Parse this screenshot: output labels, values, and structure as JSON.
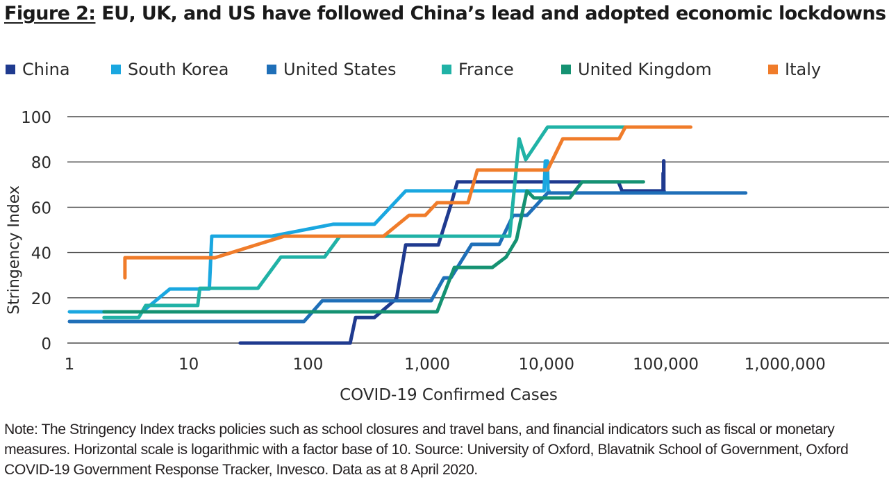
{
  "title": {
    "figure_label": "Figure 2:",
    "text": "EU, UK, and US have followed China’s lead and adopted economic lockdowns"
  },
  "note": "Note: The Stringency Index tracks policies such as school closures and travel bans, and financial indicators such as fiscal or monetary measures. Horizontal scale is logarithmic with a factor base of 10. Source: University of Oxford, Blavatnik School of Government, Oxford COVID-19 Government Response Tracker, Invesco. Data as at 8 April 2020.",
  "chart_data": {
    "type": "line",
    "title": "EU, UK, and US have followed China’s lead and adopted economic lockdowns",
    "xlabel": "COVID-19 Confirmed Cases",
    "ylabel": "Stringency Index",
    "xscale": "log",
    "xlim": [
      1,
      1000000
    ],
    "ylim": [
      0,
      100
    ],
    "x_ticks": [
      1,
      10,
      100,
      1000,
      10000,
      100000,
      1000000
    ],
    "x_tick_labels": [
      "1",
      "10",
      "100",
      "1,000",
      "10,000",
      "100,000",
      "1,000,000"
    ],
    "y_ticks": [
      0,
      20,
      40,
      60,
      80,
      100
    ],
    "y_tick_labels": [
      "0",
      "20",
      "40",
      "60",
      "80",
      "100"
    ],
    "grid": "horizontal",
    "legend_position": "top",
    "series": [
      {
        "name": "China",
        "color": "#1f3a8f",
        "points": [
          [
            27,
            0
          ],
          [
            226,
            0
          ],
          [
            251,
            11.3
          ],
          [
            361,
            11.3
          ],
          [
            553,
            19.6
          ],
          [
            660,
            43.3
          ],
          [
            1240,
            43.3
          ],
          [
            1580,
            61
          ],
          [
            1790,
            71.2
          ],
          [
            40100,
            71.2
          ],
          [
            43000,
            67.2
          ],
          [
            95000,
            67.2
          ],
          [
            95000,
            75
          ],
          [
            96000,
            75
          ],
          [
            96000,
            80.5
          ],
          [
            96500,
            80.5
          ],
          [
            96500,
            67.2
          ],
          [
            97000,
            67.2
          ]
        ]
      },
      {
        "name": "South Korea",
        "color": "#1aa7e0",
        "points": [
          [
            1,
            13.8
          ],
          [
            4.07,
            13.8
          ],
          [
            6.96,
            23.9
          ],
          [
            14.9,
            23.9
          ],
          [
            15.6,
            47.2
          ],
          [
            49.8,
            47.2
          ],
          [
            162,
            52.5
          ],
          [
            361,
            52.5
          ],
          [
            660,
            67.2
          ],
          [
            9560,
            67.2
          ],
          [
            9780,
            80.4
          ],
          [
            10200,
            80.4
          ],
          [
            10300,
            67.2
          ],
          [
            10500,
            67.2
          ]
        ]
      },
      {
        "name": "United States",
        "color": "#1f6fb8",
        "points": [
          [
            1,
            9.5
          ],
          [
            92.5,
            9.5
          ],
          [
            132,
            18.7
          ],
          [
            1080,
            18.7
          ],
          [
            1380,
            28.8
          ],
          [
            1580,
            28.8
          ],
          [
            2360,
            43.6
          ],
          [
            4020,
            43.6
          ],
          [
            5250,
            56.4
          ],
          [
            6860,
            56.4
          ],
          [
            10220,
            66.3
          ],
          [
            469000,
            66.3
          ]
        ]
      },
      {
        "name": "France",
        "color": "#20b2a6",
        "points": [
          [
            1.95,
            11.3
          ],
          [
            3.81,
            11.3
          ],
          [
            4.36,
            16.6
          ],
          [
            11.9,
            16.6
          ],
          [
            12.4,
            24.2
          ],
          [
            38.1,
            24.2
          ],
          [
            59.3,
            38
          ],
          [
            138,
            38
          ],
          [
            185,
            47.2
          ],
          [
            4910,
            47.2
          ],
          [
            5900,
            90.2
          ],
          [
            6700,
            81
          ],
          [
            10220,
            95.4
          ],
          [
            47800,
            95.4
          ]
        ]
      },
      {
        "name": "United Kingdom",
        "color": "#159272",
        "points": [
          [
            1.95,
            13.8
          ],
          [
            1210,
            13.8
          ],
          [
            1690,
            33.4
          ],
          [
            3520,
            33.4
          ],
          [
            4590,
            38
          ],
          [
            5610,
            45.7
          ],
          [
            6860,
            67.2
          ],
          [
            7840,
            64.1
          ],
          [
            15700,
            64.1
          ],
          [
            19900,
            71.2
          ],
          [
            65000,
            71.2
          ]
        ]
      },
      {
        "name": "Italy",
        "color": "#f07c2a",
        "points": [
          [
            2.92,
            28.8
          ],
          [
            2.92,
            37.7
          ],
          [
            16.6,
            37.7
          ],
          [
            63.2,
            47.2
          ],
          [
            431,
            47.2
          ],
          [
            705,
            56.4
          ],
          [
            964,
            56.4
          ],
          [
            1210,
            62
          ],
          [
            2200,
            62
          ],
          [
            2630,
            76.4
          ],
          [
            10220,
            76.4
          ],
          [
            13700,
            90.2
          ],
          [
            40600,
            90.2
          ],
          [
            45900,
            95.4
          ],
          [
            162000,
            95.4
          ]
        ]
      }
    ]
  }
}
